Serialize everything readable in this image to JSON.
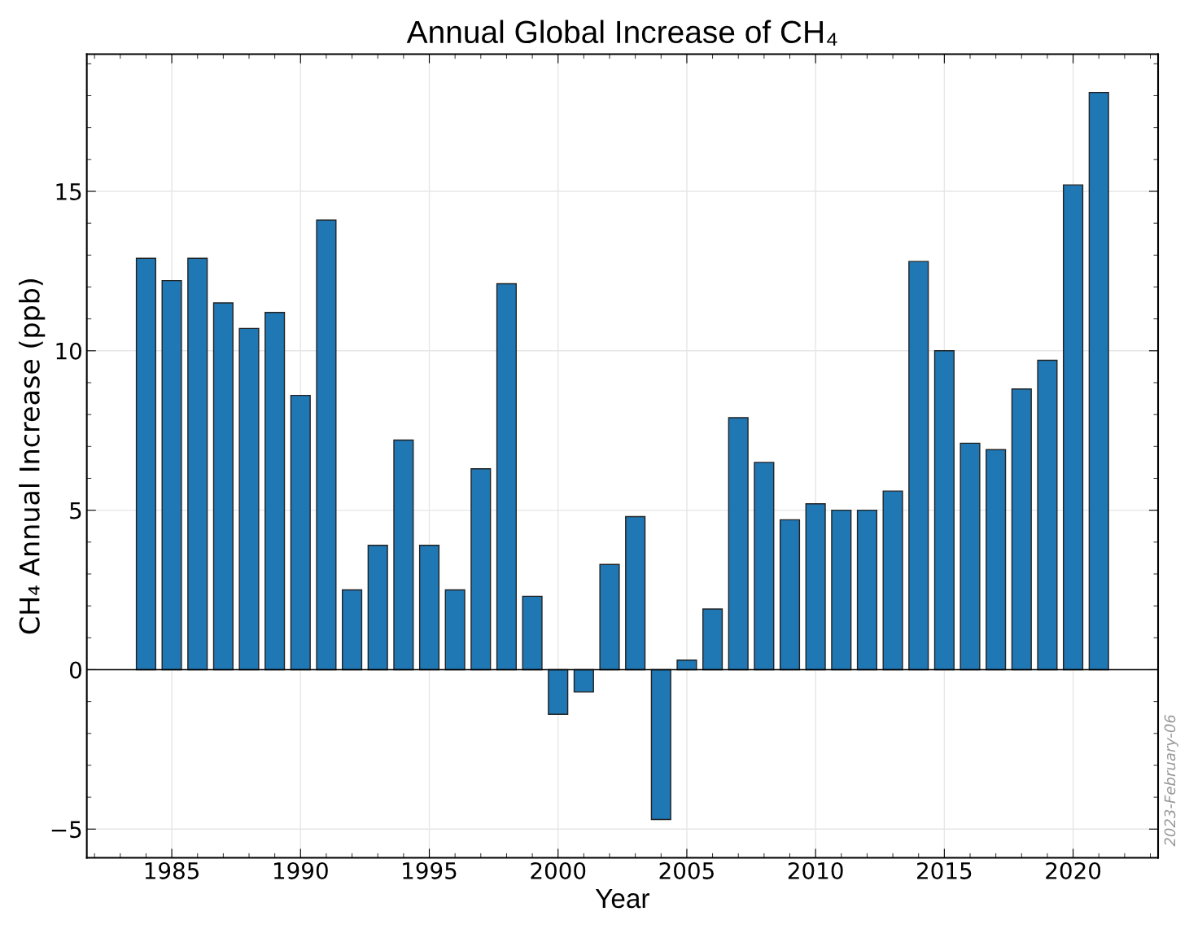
{
  "chart_data": {
    "type": "bar",
    "title": "Annual Global Increase of CH₄",
    "xlabel": "Year",
    "ylabel": "CH₄ Annual Increase (ppb)",
    "x": [
      1984,
      1985,
      1986,
      1987,
      1988,
      1989,
      1990,
      1991,
      1992,
      1993,
      1994,
      1995,
      1996,
      1997,
      1998,
      1999,
      2000,
      2001,
      2002,
      2003,
      2004,
      2005,
      2006,
      2007,
      2008,
      2009,
      2010,
      2011,
      2012,
      2013,
      2014,
      2015,
      2016,
      2017,
      2018,
      2019,
      2020,
      2021
    ],
    "values": [
      12.9,
      12.2,
      12.9,
      11.5,
      10.7,
      11.2,
      8.6,
      14.1,
      2.5,
      3.9,
      7.2,
      3.9,
      2.5,
      6.3,
      12.1,
      2.3,
      -1.4,
      -0.7,
      3.3,
      4.8,
      -4.7,
      0.3,
      1.9,
      7.9,
      6.5,
      4.7,
      5.2,
      5.0,
      5.0,
      5.6,
      12.8,
      10.0,
      7.1,
      6.9,
      8.8,
      9.7,
      15.2,
      18.1
    ],
    "color": "#1f77b4",
    "xlim": [
      1981.7,
      2023.3
    ],
    "xticks": [
      1985,
      1990,
      1995,
      2000,
      2005,
      2010,
      2015,
      2020
    ],
    "ylim": [
      -5.9,
      19.3
    ],
    "yticks": [
      {
        "value": -5,
        "label": "−5"
      },
      0,
      5,
      10,
      15
    ],
    "ref_lines": [
      {
        "axis": "y",
        "value": 0,
        "color": "#000000"
      }
    ],
    "grid": true,
    "annotations": [
      "2023-February-06"
    ]
  }
}
